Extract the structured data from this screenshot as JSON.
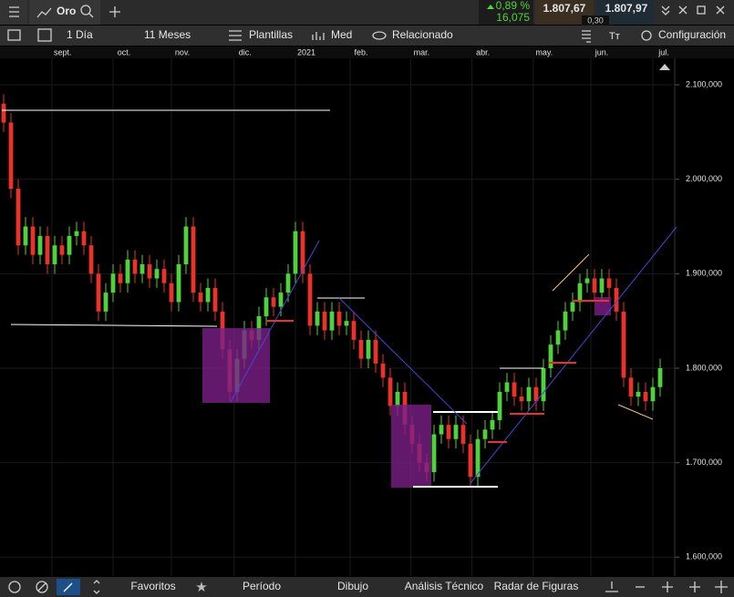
{
  "header": {
    "instrument": "Oro",
    "change_pct": "0,89 %",
    "change_abs": "16,075",
    "sell": "1.807,67",
    "spread": "0,30",
    "buy": "1.807,97"
  },
  "toolbar": {
    "interval": "1 Día",
    "range": "11 Meses",
    "templates": "Plantillas",
    "indicator": "Med",
    "related": "Relacionado",
    "settings": "Configuración"
  },
  "bottom_bar": {
    "favorites": "Favoritos",
    "period": "Período",
    "drawing": "Dibujo",
    "analysis": "Análisis Técnico",
    "radar": "Radar de Figuras"
  },
  "chart_data": {
    "type": "candlestick",
    "up_color": "#4fd23c",
    "down_color": "#e8322a",
    "xlim": [
      -0.5,
      90.5
    ],
    "xticks": [
      {
        "value": 6.6,
        "label": "sept."
      },
      {
        "value": 15,
        "label": "oct."
      },
      {
        "value": 23,
        "label": "nov."
      },
      {
        "value": 31.6,
        "label": "dic."
      },
      {
        "value": 40,
        "label": "2021"
      },
      {
        "value": 47.5,
        "label": "feb."
      },
      {
        "value": 55.8,
        "label": "mar."
      },
      {
        "value": 64.2,
        "label": "abr."
      },
      {
        "value": 72.6,
        "label": "may."
      },
      {
        "value": 80.5,
        "label": "jun."
      },
      {
        "value": 89,
        "label": "jul."
      }
    ],
    "ylim": [
      1580,
      2128
    ],
    "yticks": [
      {
        "value": 2100,
        "label": "2.100,000"
      },
      {
        "value": 2000,
        "label": "2.000,000"
      },
      {
        "value": 1900,
        "label": "1.900,000"
      },
      {
        "value": 1800,
        "label": "1.800,000"
      },
      {
        "value": 1700,
        "label": "1.700,000"
      },
      {
        "value": 1600,
        "label": "1.600,000"
      }
    ],
    "grid": true,
    "series": {
      "open": [
        2080,
        2060,
        1990,
        1930,
        1950,
        1920,
        1940,
        1910,
        1930,
        1920,
        1940,
        1945,
        1930,
        1900,
        1860,
        1880,
        1900,
        1890,
        1915,
        1900,
        1910,
        1895,
        1905,
        1890,
        1870,
        1910,
        1950,
        1880,
        1870,
        1885,
        1860,
        1820,
        1775,
        1810,
        1840,
        1830,
        1855,
        1875,
        1865,
        1880,
        1900,
        1945,
        1900,
        1845,
        1860,
        1840,
        1860,
        1845,
        1850,
        1830,
        1810,
        1830,
        1805,
        1790,
        1760,
        1775,
        1740,
        1720,
        1700,
        1690,
        1730,
        1740,
        1725,
        1740,
        1720,
        1685,
        1725,
        1735,
        1745,
        1775,
        1785,
        1770,
        1765,
        1780,
        1765,
        1800,
        1825,
        1840,
        1860,
        1870,
        1890,
        1895,
        1880,
        1895,
        1885,
        1860,
        1790,
        1770,
        1775,
        1765,
        1780
      ],
      "high": [
        2090,
        2070,
        2000,
        1960,
        1960,
        1950,
        1950,
        1940,
        1940,
        1950,
        1955,
        1955,
        1940,
        1910,
        1890,
        1910,
        1910,
        1925,
        1925,
        1920,
        1920,
        1915,
        1915,
        1900,
        1920,
        1960,
        1960,
        1890,
        1895,
        1895,
        1870,
        1830,
        1820,
        1850,
        1850,
        1865,
        1885,
        1885,
        1890,
        1910,
        1955,
        1955,
        1910,
        1870,
        1870,
        1870,
        1870,
        1860,
        1860,
        1840,
        1840,
        1840,
        1815,
        1800,
        1785,
        1785,
        1750,
        1730,
        1710,
        1740,
        1750,
        1750,
        1750,
        1750,
        1730,
        1735,
        1745,
        1755,
        1785,
        1795,
        1795,
        1780,
        1790,
        1790,
        1810,
        1835,
        1850,
        1870,
        1880,
        1900,
        1905,
        1905,
        1905,
        1905,
        1895,
        1870,
        1800,
        1785,
        1785,
        1790,
        1810
      ],
      "low": [
        2050,
        1980,
        1920,
        1920,
        1910,
        1910,
        1900,
        1900,
        1910,
        1910,
        1930,
        1920,
        1890,
        1850,
        1850,
        1870,
        1880,
        1880,
        1890,
        1890,
        1885,
        1885,
        1880,
        1860,
        1860,
        1900,
        1870,
        1860,
        1860,
        1850,
        1810,
        1765,
        1765,
        1800,
        1820,
        1820,
        1845,
        1855,
        1855,
        1870,
        1890,
        1890,
        1835,
        1835,
        1830,
        1830,
        1835,
        1835,
        1820,
        1800,
        1800,
        1795,
        1780,
        1750,
        1750,
        1730,
        1710,
        1690,
        1680,
        1680,
        1720,
        1715,
        1715,
        1710,
        1675,
        1675,
        1715,
        1725,
        1735,
        1765,
        1760,
        1755,
        1755,
        1755,
        1755,
        1790,
        1815,
        1830,
        1850,
        1860,
        1880,
        1870,
        1870,
        1875,
        1850,
        1780,
        1760,
        1760,
        1755,
        1755,
        1770
      ],
      "close": [
        2060,
        1990,
        1930,
        1950,
        1920,
        1940,
        1910,
        1930,
        1920,
        1940,
        1945,
        1930,
        1900,
        1860,
        1880,
        1900,
        1890,
        1915,
        1900,
        1910,
        1895,
        1905,
        1890,
        1870,
        1910,
        1950,
        1880,
        1870,
        1885,
        1860,
        1820,
        1775,
        1810,
        1840,
        1830,
        1855,
        1875,
        1865,
        1880,
        1900,
        1945,
        1900,
        1845,
        1860,
        1840,
        1860,
        1845,
        1850,
        1830,
        1810,
        1830,
        1805,
        1790,
        1760,
        1775,
        1740,
        1720,
        1700,
        1690,
        1730,
        1740,
        1725,
        1740,
        1720,
        1685,
        1725,
        1735,
        1745,
        1775,
        1785,
        1770,
        1765,
        1780,
        1765,
        1800,
        1825,
        1840,
        1860,
        1870,
        1890,
        1895,
        1880,
        1895,
        1885,
        1860,
        1790,
        1770,
        1775,
        1765,
        1780,
        1800
      ]
    }
  }
}
